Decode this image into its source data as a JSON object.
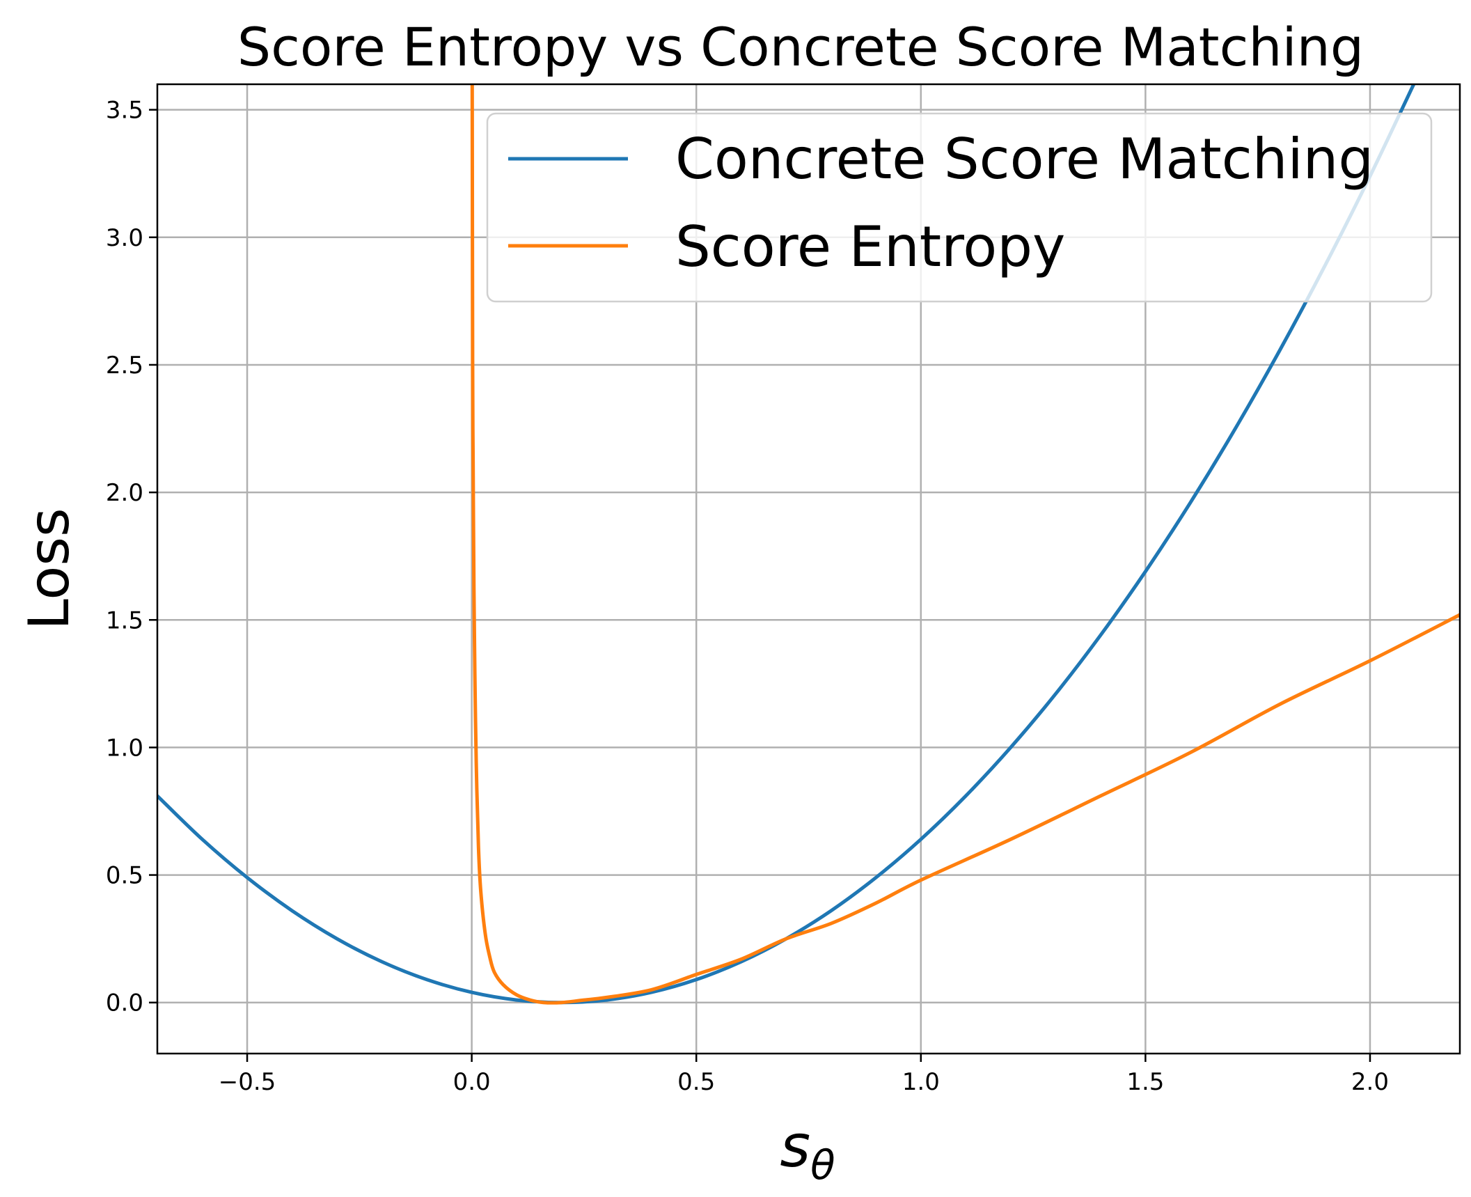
{
  "chart_data": {
    "type": "line",
    "title": "Score Entropy vs Concrete Score Matching",
    "xlabel_main": "s",
    "xlabel_sub": "θ",
    "ylabel": "Loss",
    "xlim": [
      -0.7,
      2.2
    ],
    "ylim": [
      -0.2,
      3.6
    ],
    "xticks": [
      -0.5,
      0.0,
      0.5,
      1.0,
      1.5,
      2.0
    ],
    "xtick_labels": [
      "−0.5",
      "0.0",
      "0.5",
      "1.0",
      "1.5",
      "2.0"
    ],
    "yticks": [
      0.0,
      0.5,
      1.0,
      1.5,
      2.0,
      2.5,
      3.0,
      3.5
    ],
    "ytick_labels": [
      "0.0",
      "0.5",
      "1.0",
      "1.5",
      "2.0",
      "2.5",
      "3.0",
      "3.5"
    ],
    "grid": true,
    "legend_position": "top-right",
    "series": [
      {
        "name": "Concrete Score Matching",
        "color": "#1f77b4",
        "x": [
          -0.7,
          -0.6,
          -0.5,
          -0.4,
          -0.3,
          -0.2,
          -0.1,
          0.0,
          0.1,
          0.2,
          0.3,
          0.4,
          0.5,
          0.6,
          0.7,
          0.8,
          0.9,
          1.0,
          1.1,
          1.2,
          1.3,
          1.4,
          1.5,
          1.6,
          1.7,
          1.8,
          1.9,
          2.0,
          2.1
        ],
        "y": [
          0.81,
          0.64,
          0.49,
          0.36,
          0.25,
          0.16,
          0.09,
          0.04,
          0.01,
          0.0,
          0.01,
          0.04,
          0.09,
          0.16,
          0.25,
          0.36,
          0.49,
          0.64,
          0.81,
          1.0,
          1.21,
          1.44,
          1.69,
          1.96,
          2.25,
          2.56,
          2.89,
          3.24,
          3.61
        ]
      },
      {
        "name": "Score Entropy",
        "color": "#ff7f0e",
        "x": [
          0.001,
          0.002,
          0.003,
          0.005,
          0.007,
          0.01,
          0.015,
          0.02,
          0.03,
          0.04,
          0.05,
          0.07,
          0.1,
          0.13,
          0.16,
          0.2,
          0.25,
          0.3,
          0.4,
          0.5,
          0.6,
          0.7,
          0.8,
          0.9,
          1.0,
          1.2,
          1.4,
          1.6,
          1.8,
          2.0,
          2.2
        ],
        "y": [
          3.6,
          2.52,
          2.12,
          1.62,
          1.29,
          0.94,
          0.61,
          0.44,
          0.27,
          0.18,
          0.12,
          0.07,
          0.03,
          0.01,
          0.0,
          0.0,
          0.01,
          0.02,
          0.05,
          0.11,
          0.17,
          0.25,
          0.31,
          0.39,
          0.48,
          0.64,
          0.81,
          0.98,
          1.17,
          1.34,
          1.52
        ]
      }
    ]
  }
}
